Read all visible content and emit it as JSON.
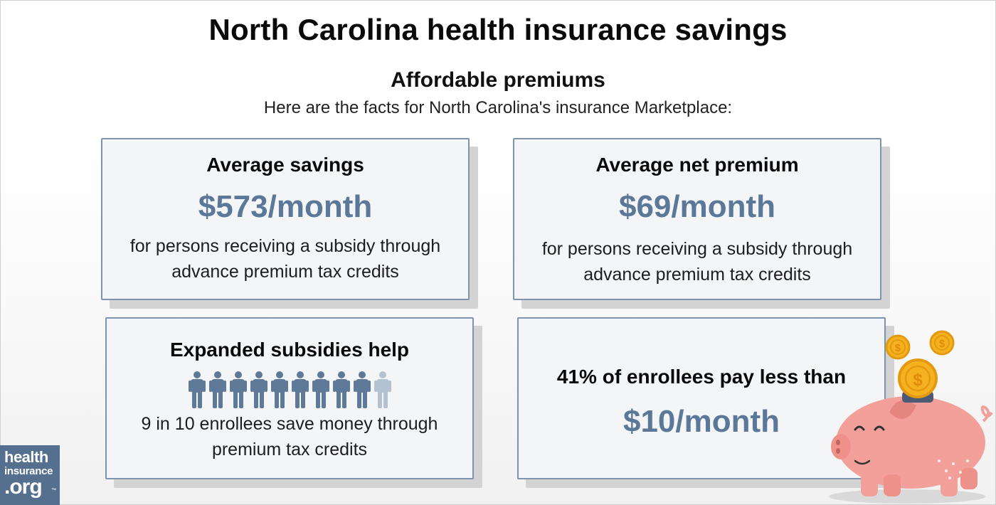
{
  "header": {
    "title": "North Carolina health insurance savings",
    "subtitle": "Affordable premiums",
    "intro": "Here are the facts for North Carolina's insurance Marketplace:"
  },
  "cards": [
    {
      "heading": "Average savings",
      "value": "$573/month",
      "desc_line1": "for persons receiving a subsidy through",
      "desc_line2": "advance premium tax credits"
    },
    {
      "heading": "Average net premium",
      "value": "$69/month",
      "desc_line1": "for persons receiving a subsidy through",
      "desc_line2": "advance premium tax credits"
    },
    {
      "heading": "Expanded subsidies help",
      "enrollees_saving": 9,
      "enrollees_total": 10,
      "desc_line1": "9 in 10 enrollees save money through",
      "desc_line2": "premium tax credits"
    },
    {
      "heading": "41% of enrollees pay less than",
      "value": "$10/month"
    }
  ],
  "logo": {
    "line1": "health",
    "line2": "insurance",
    "line3": ".org",
    "tm": "™"
  },
  "colors": {
    "accent": "#5b7898",
    "card_border": "#7e93ad",
    "card_bg": "#f4f5f7",
    "person_active": "#5f7a98",
    "person_inactive": "#b4c1d0",
    "pig": "#f3a09a",
    "coin": "#f5b120"
  }
}
